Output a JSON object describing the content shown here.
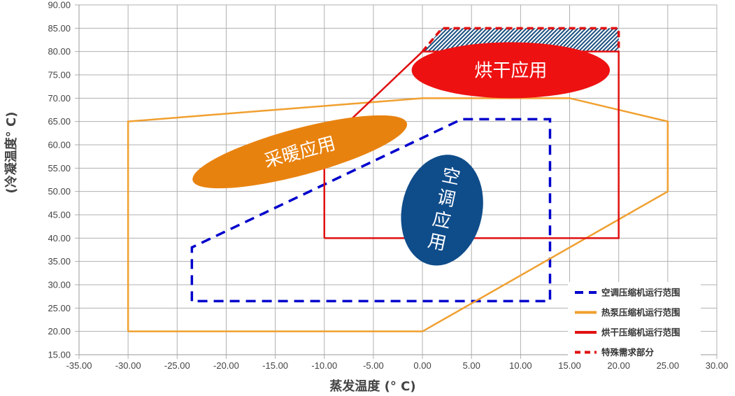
{
  "chart_data": {
    "type": "line",
    "xlabel": "蒸发温度 (° C)",
    "ylabel": "(冷凝温度° C)",
    "xlim": [
      -35,
      30
    ],
    "ylim": [
      15,
      90
    ],
    "xticks": [
      "-35.00",
      "-30.00",
      "-25.00",
      "-20.00",
      "-15.00",
      "-10.00",
      "-5.00",
      "0.00",
      "5.00",
      "10.00",
      "15.00",
      "20.00",
      "25.00",
      "30.00"
    ],
    "yticks": [
      "15.00",
      "20.00",
      "25.00",
      "30.00",
      "35.00",
      "40.00",
      "45.00",
      "50.00",
      "55.00",
      "60.00",
      "65.00",
      "70.00",
      "75.00",
      "80.00",
      "85.00",
      "90.00"
    ],
    "grid": true,
    "legend_position": "bottom-right",
    "series": [
      {
        "name": "空调压缩机运行范围",
        "color": "#0000cc",
        "style": "dashed",
        "points": [
          [
            -23.5,
            26.5
          ],
          [
            -23.5,
            38
          ],
          [
            4,
            65.5
          ],
          [
            13,
            65.5
          ],
          [
            13,
            26.5
          ],
          [
            -23.5,
            26.5
          ]
        ]
      },
      {
        "name": "热泵压缩机运行范围",
        "color": "#f0a030",
        "style": "solid",
        "points": [
          [
            -30,
            20
          ],
          [
            -30,
            65
          ],
          [
            0,
            70
          ],
          [
            15,
            70
          ],
          [
            25,
            65
          ],
          [
            25,
            50
          ],
          [
            0,
            20
          ],
          [
            -30,
            20
          ]
        ]
      },
      {
        "name": "烘干压缩机运行范围",
        "color": "#e01010",
        "style": "solid",
        "points": [
          [
            -10,
            40
          ],
          [
            -10,
            60
          ],
          [
            0,
            80
          ],
          [
            20,
            80
          ],
          [
            20,
            40
          ],
          [
            -10,
            40
          ]
        ]
      },
      {
        "name": "特殊需求部分",
        "color": "#e01010",
        "style": "dashed",
        "hatch_color": "#1a4f80",
        "points": [
          [
            0,
            80
          ],
          [
            2,
            85
          ],
          [
            20,
            85
          ],
          [
            20,
            80
          ]
        ]
      }
    ],
    "annotations": [
      {
        "text": "采暖应用",
        "color": "#e8820f",
        "center": [
          -12.5,
          58.5
        ],
        "radii": [
          11.3,
          5
        ],
        "rotate": -15,
        "vertical": false
      },
      {
        "text": "烘干应用",
        "color": "#ee1111",
        "center": [
          9,
          76
        ],
        "radii": [
          10.1,
          6
        ],
        "rotate": 0,
        "vertical": false
      },
      {
        "text": "空调应用",
        "color": "#0f4c8a",
        "center": [
          2,
          46
        ],
        "radii": [
          4.1,
          12
        ],
        "rotate": 12,
        "vertical": true
      }
    ]
  }
}
